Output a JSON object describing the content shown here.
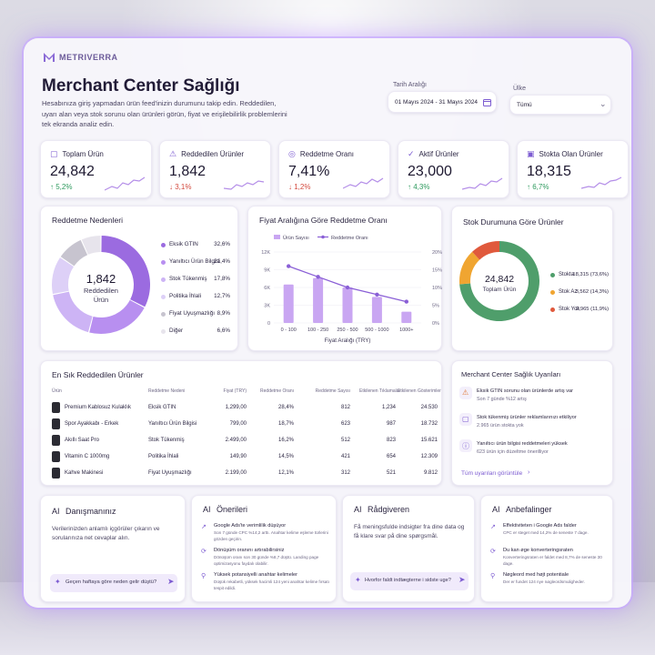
{
  "app": {
    "brand": "METRIVERRA"
  },
  "header": {
    "title": "Merchant Center Sağlığı",
    "description": "Hesabınıza giriş yapmadan ürün feed'inizin durumunu takip edin. Reddedilen, uyarı alan veya stok sorunu olan ürünleri görün, fiyat ve erişilebilirlik problemlerini tek ekranda analiz edin.",
    "date_label": "Tarih Aralığı",
    "date_value": "01 Mayıs 2024 - 31 Mayıs 2024",
    "country_label": "Ülke",
    "country_value": "Tümü"
  },
  "kpis": [
    {
      "title": "Toplam Ürün",
      "value": "24,842",
      "delta": "↑ 5,2%",
      "dir": "up",
      "icon": "box-icon"
    },
    {
      "title": "Reddedilen Ürünler",
      "value": "1,842",
      "delta": "↓ 3,1%",
      "dir": "down",
      "icon": "warning-icon"
    },
    {
      "title": "Reddetme Oranı",
      "value": "7,41%",
      "delta": "↓ 1,2%",
      "dir": "down",
      "icon": "target-icon"
    },
    {
      "title": "Aktif Ürünler",
      "value": "23,000",
      "delta": "↑ 4,3%",
      "dir": "up",
      "icon": "check-badge-icon"
    },
    {
      "title": "Stokta Olan Ürünler",
      "value": "18,315",
      "delta": "↑ 6,7%",
      "dir": "up",
      "icon": "bag-icon"
    }
  ],
  "reasons": {
    "title": "Reddetme Nedenleri",
    "center_value": "1,842",
    "center_label_1": "Reddedilen",
    "center_label_2": "Ürün",
    "items": [
      {
        "label": "Eksik GTIN",
        "pct": "32,6%",
        "value": 32.6,
        "color": "#9b6be0"
      },
      {
        "label": "Yanıltıcı Ürün Bilgisi",
        "pct": "21,4%",
        "value": 21.4,
        "color": "#b88ff0"
      },
      {
        "label": "Stok Tükenmiş",
        "pct": "17,8%",
        "value": 17.8,
        "color": "#cdb4f5"
      },
      {
        "label": "Politika İhlali",
        "pct": "12,7%",
        "value": 12.7,
        "color": "#ddd0f7"
      },
      {
        "label": "Fiyat Uyuşmazlığı",
        "pct": "8,9%",
        "value": 8.9,
        "color": "#c7c4cf"
      },
      {
        "label": "Diğer",
        "pct": "6,6%",
        "value": 6.6,
        "color": "#e7e4ec"
      }
    ]
  },
  "chart_data": {
    "type": "bar",
    "title": "Fiyat Aralığına Göre Reddetme Oranı",
    "categories": [
      "0 - 100",
      "100 - 250",
      "250 - 500",
      "500 - 1000",
      "1000+"
    ],
    "series": [
      {
        "name": "Ürün Sayısı",
        "type": "bar",
        "axis": "left",
        "values": [
          6500,
          7600,
          6000,
          4400,
          1900
        ]
      },
      {
        "name": "Reddetme Oranı",
        "type": "line",
        "axis": "right",
        "values": [
          16,
          13,
          10,
          8,
          6
        ]
      }
    ],
    "xlabel": "Fiyat Aralığı (TRY)",
    "ylim_left": [
      0,
      12000
    ],
    "ylim_right": [
      0,
      20
    ],
    "y_ticks_left": [
      "0",
      "3K",
      "6K",
      "9K",
      "12K"
    ],
    "y_ticks_right": [
      "0%",
      "5%",
      "10%",
      "15%",
      "20%"
    ],
    "legend": "top-left"
  },
  "stock": {
    "title": "Stok Durumuna Göre Ürünler",
    "center_value": "24,842",
    "center_label": "Toplam Ürün",
    "items": [
      {
        "label": "Stokta",
        "text": "18,315 (73,6%)",
        "value": 73.6,
        "color": "#4f9e6b"
      },
      {
        "label": "Stok Az",
        "text": "3,562 (14,3%)",
        "value": 14.3,
        "color": "#f0a531"
      },
      {
        "label": "Stok Yok",
        "text": "2,965 (11,9%)",
        "value": 11.9,
        "color": "#e0593c"
      }
    ]
  },
  "table": {
    "title": "En Sık Reddedilen Ürünler",
    "headers": [
      "Ürün",
      "Reddetme Nedeni",
      "Fiyat (TRY)",
      "Reddetme Oranı",
      "Reddetme Sayısı",
      "Etkilenen Tıklamalar",
      "Etkilenen Gösterimler"
    ],
    "rows": [
      {
        "product": "Premium Kablosuz Kulaklık",
        "reason": "Eksik GTIN",
        "price": "1,299,00",
        "rate": "28,4%",
        "count": "812",
        "clicks": "1,234",
        "impr": "24.530"
      },
      {
        "product": "Spor Ayakkabı - Erkek",
        "reason": "Yanıltıcı Ürün Bilgisi",
        "price": "799,00",
        "rate": "18,7%",
        "count": "623",
        "clicks": "987",
        "impr": "18.732"
      },
      {
        "product": "Akıllı Saat Pro",
        "reason": "Stok Tükenmiş",
        "price": "2.499,00",
        "rate": "16,2%",
        "count": "512",
        "clicks": "823",
        "impr": "15.621"
      },
      {
        "product": "Vitamin C 1000mg",
        "reason": "Politika İhlali",
        "price": "149,90",
        "rate": "14,5%",
        "count": "421",
        "clicks": "654",
        "impr": "12.309"
      },
      {
        "product": "Kahve Makinesi",
        "reason": "Fiyat Uyuşmazlığı",
        "price": "2.199,00",
        "rate": "12,1%",
        "count": "312",
        "clicks": "521",
        "impr": "9.812"
      }
    ]
  },
  "alerts": {
    "title": "Merchant Center Sağlık Uyarıları",
    "items": [
      {
        "title": "Eksik GTIN sorunu olan ürünlerde artış var",
        "sub": "Son 7 günde %12 artış",
        "icon": "warning-icon"
      },
      {
        "title": "Stok tükenmiş ürünler reklamlarınızı etkiliyor",
        "sub": "2.965 ürün stokta yok",
        "icon": "box-icon"
      },
      {
        "title": "Yanıltıcı ürün bilgisi reddetmeleri yüksek",
        "sub": "623 ürün için düzeltme önerilliyor",
        "icon": "info-icon"
      }
    ],
    "link": "Tüm uyarıları görüntüle"
  },
  "ai_assistant": {
    "title": "Danışmanınız",
    "ai": "AI",
    "text": "Verilerinizden anlamlı içgörüler çıkarın ve sorularınıza net cevaplar alın.",
    "prompt": "Geçen haftaya göre neden gelir düştü?"
  },
  "ai_suggestions": {
    "title": "Önerileri",
    "ai": "AI",
    "items": [
      {
        "title": "Google Ads'te verimlilik düşüyor",
        "sub": "Son 7 günde CPC %14,2 arttı. Anahtar kelime eşleme türlerini gözden geçirin."
      },
      {
        "title": "Dönüşüm oranını artırabilirsiniz",
        "sub": "Dönüşüm oranı son 30 günde %8,7 düştü. Landing page optimizasyonu faydalı olabilir."
      },
      {
        "title": "Yüksek potansiyelli anahtar kelimeler",
        "sub": "Düşük rekabetli, yüksek hacimli 124 yeni anahtar kelime fırsatı tespit edildi."
      }
    ]
  },
  "ai_advisor": {
    "title": "Rådgiveren",
    "ai": "AI",
    "text": "Få meningsfulde indsigter fra dine data og få klare svar på dine spørgsmål.",
    "prompt": "Hvorfor faldt indtægterne i sidste uge?"
  },
  "ai_recs": {
    "title": "Anbefalinger",
    "ai": "AI",
    "items": [
      {
        "title": "Effektiviteten i Google Ads falder",
        "sub": "CPC er steget med 14,2% de seneste 7 dage."
      },
      {
        "title": "Du kan øge konverteringsraten",
        "sub": "Konverteringsraten er faldet med 8,7% de seneste 30 dage."
      },
      {
        "title": "Nøgleord med højt potentiale",
        "sub": "Der er fundet 124 nye nøgleordsmuligheder."
      }
    ]
  },
  "colors": {
    "accent": "#7c5bd1",
    "bar": "#c9a6f2",
    "line": "#8a5fd6"
  }
}
